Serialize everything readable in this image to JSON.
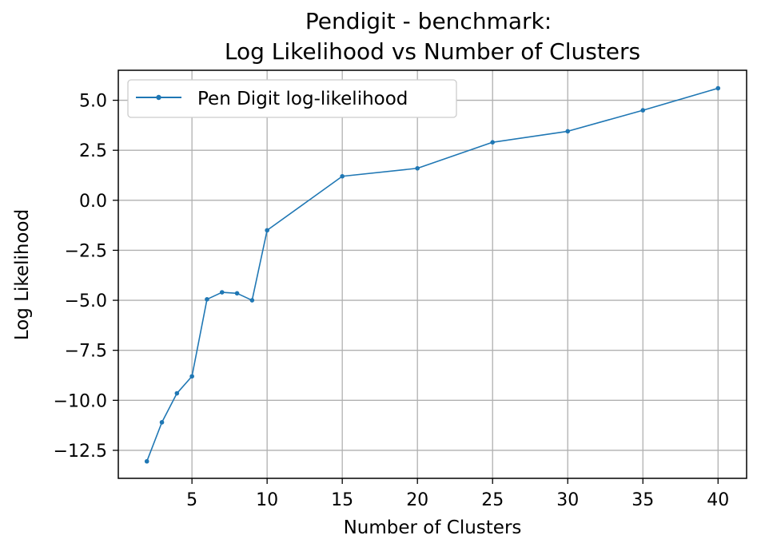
{
  "chart_data": {
    "type": "line",
    "title_lines": [
      "Pendigit - benchmark:",
      "Log Likelihood vs Number of Clusters"
    ],
    "xlabel": "Number of Clusters",
    "ylabel": "Log Likelihood",
    "xlim": [
      0.1,
      41.9
    ],
    "ylim": [
      -13.9,
      6.5
    ],
    "xticks": [
      5,
      10,
      15,
      20,
      25,
      30,
      35,
      40
    ],
    "xtick_labels": [
      "5",
      "10",
      "15",
      "20",
      "25",
      "30",
      "35",
      "40"
    ],
    "yticks": [
      5.0,
      2.5,
      0.0,
      -2.5,
      -5.0,
      -7.5,
      -10.0,
      -12.5
    ],
    "ytick_labels": [
      "5.0",
      "2.5",
      "0.0",
      "−2.5",
      "−5.0",
      "−7.5",
      "−10.0",
      "−12.5"
    ],
    "grid": true,
    "legend_position": "top-left",
    "series": [
      {
        "name": "Pen Digit log-likelihood",
        "color": "#1f77b4",
        "marker": "circle",
        "x": [
          2,
          3,
          4,
          5,
          6,
          7,
          8,
          9,
          10,
          15,
          20,
          25,
          30,
          35,
          40
        ],
        "y": [
          -13.05,
          -11.1,
          -9.65,
          -8.8,
          -4.95,
          -4.6,
          -4.65,
          -5.0,
          -1.5,
          1.2,
          1.6,
          2.9,
          3.45,
          4.5,
          5.6
        ]
      }
    ]
  }
}
